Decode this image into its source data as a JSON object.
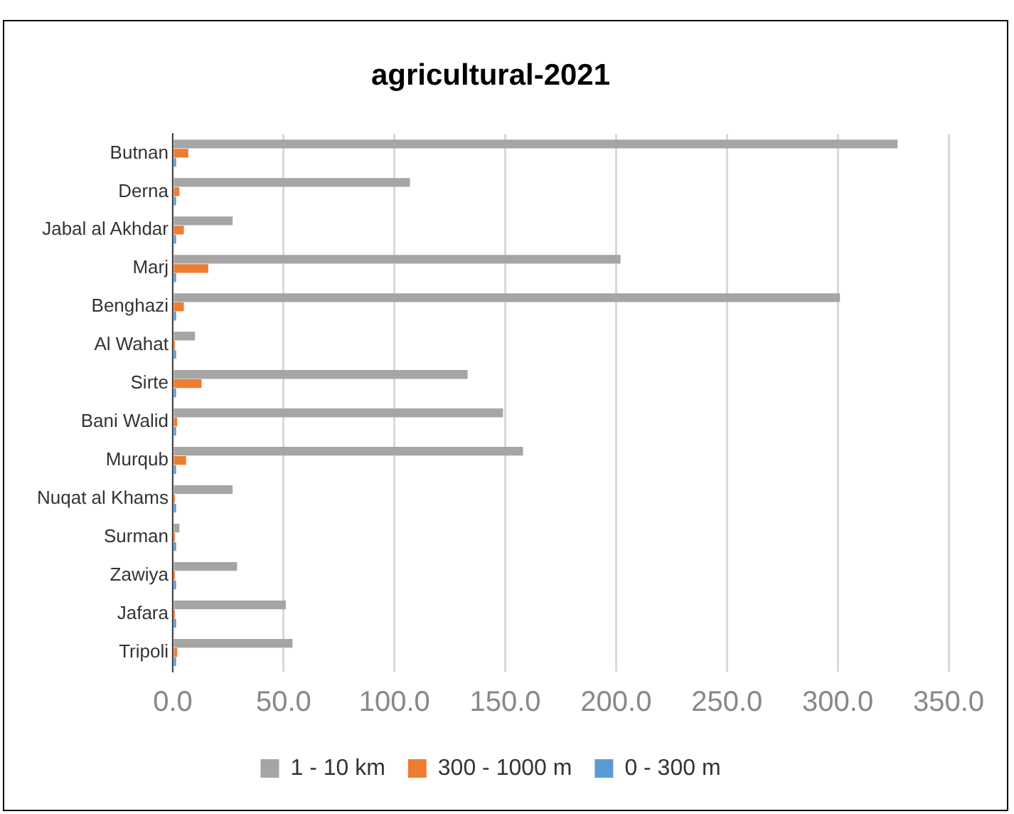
{
  "chart_data": {
    "type": "bar",
    "orientation": "horizontal",
    "title": "agricultural-2021",
    "categories": [
      "Butnan",
      "Derna",
      "Jabal al Akhdar",
      "Marj",
      "Benghazi",
      "Al Wahat",
      "Sirte",
      "Bani Walid",
      "Murqub",
      "Nuqat al Khams",
      "Surman",
      "Zawiya",
      "Jafara",
      "Tripoli"
    ],
    "series": [
      {
        "name": "1 - 10 km",
        "color": "#a5a5a5",
        "values": [
          327,
          107,
          27,
          202,
          301,
          10,
          133,
          149,
          158,
          27,
          3,
          29,
          51,
          54
        ]
      },
      {
        "name": "300 - 1000 m",
        "color": "#ed7d31",
        "values": [
          7,
          3,
          5,
          16,
          5,
          1,
          13,
          2,
          6,
          1,
          1,
          1,
          1,
          2
        ]
      },
      {
        "name": "0 - 300 m",
        "color": "#5b9bd5",
        "values": [
          1.5,
          1.5,
          1.5,
          1.5,
          1.5,
          1.5,
          1.5,
          1.5,
          1.5,
          1.5,
          1.5,
          1.5,
          1.5,
          1.5
        ]
      }
    ],
    "xlim": [
      0,
      350
    ],
    "xticks": [
      {
        "value": 0,
        "label": "0.0"
      },
      {
        "value": 50,
        "label": "50.0"
      },
      {
        "value": 100,
        "label": "100.0"
      },
      {
        "value": 150,
        "label": "150.0"
      },
      {
        "value": 200,
        "label": "200.0"
      },
      {
        "value": 250,
        "label": "250.0"
      },
      {
        "value": 300,
        "label": "300.0"
      },
      {
        "value": 350,
        "label": "350.0"
      }
    ],
    "grid": "x",
    "legend": "bottom"
  }
}
